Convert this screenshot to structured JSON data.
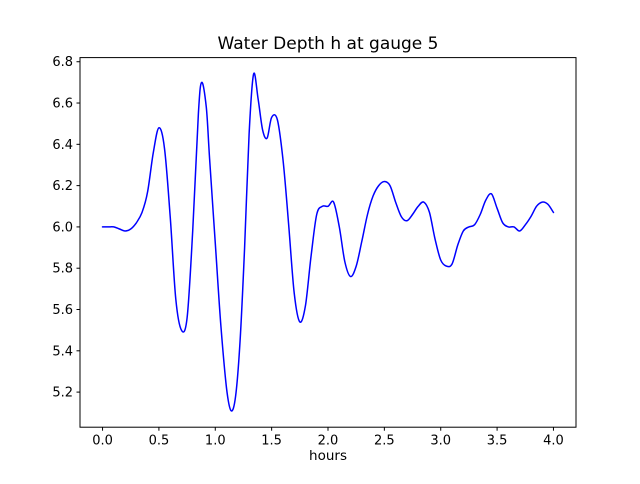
{
  "chart_data": {
    "type": "line",
    "title": "Water Depth h at gauge 5",
    "xlabel": "hours",
    "ylabel": "",
    "xlim": [
      -0.2,
      4.2
    ],
    "ylim": [
      5.03,
      6.82
    ],
    "xticks": [
      0.0,
      0.5,
      1.0,
      1.5,
      2.0,
      2.5,
      3.0,
      3.5,
      4.0
    ],
    "xtick_labels": [
      "0.0",
      "0.5",
      "1.0",
      "1.5",
      "2.0",
      "2.5",
      "3.0",
      "3.5",
      "4.0"
    ],
    "yticks": [
      5.2,
      5.4,
      5.6,
      5.8,
      6.0,
      6.2,
      6.4,
      6.6,
      6.8
    ],
    "ytick_labels": [
      "5.2",
      "5.4",
      "5.6",
      "5.8",
      "6.0",
      "6.2",
      "6.4",
      "6.6",
      "6.8"
    ],
    "line_color": "#0000ff",
    "axis_color": "#000000",
    "background_color": "#ffffff",
    "grid": false,
    "legend": null,
    "series": [
      {
        "name": "h",
        "x": [
          0.0,
          0.05,
          0.1,
          0.15,
          0.2,
          0.25,
          0.3,
          0.35,
          0.4,
          0.45,
          0.5,
          0.55,
          0.6,
          0.65,
          0.7,
          0.75,
          0.8,
          0.85,
          0.88,
          0.92,
          0.95,
          1.0,
          1.05,
          1.1,
          1.14,
          1.18,
          1.22,
          1.26,
          1.3,
          1.34,
          1.38,
          1.42,
          1.46,
          1.5,
          1.55,
          1.6,
          1.65,
          1.7,
          1.75,
          1.8,
          1.85,
          1.9,
          1.95,
          2.0,
          2.05,
          2.1,
          2.15,
          2.2,
          2.25,
          2.3,
          2.35,
          2.4,
          2.45,
          2.5,
          2.55,
          2.6,
          2.65,
          2.7,
          2.75,
          2.8,
          2.85,
          2.9,
          2.95,
          3.0,
          3.05,
          3.1,
          3.15,
          3.2,
          3.25,
          3.3,
          3.35,
          3.4,
          3.45,
          3.5,
          3.55,
          3.6,
          3.65,
          3.7,
          3.75,
          3.8,
          3.85,
          3.9,
          3.95,
          4.0
        ],
        "y": [
          6.0,
          6.0,
          6.0,
          5.99,
          5.98,
          5.99,
          6.02,
          6.07,
          6.17,
          6.36,
          6.48,
          6.38,
          6.05,
          5.65,
          5.5,
          5.56,
          5.98,
          6.55,
          6.7,
          6.58,
          6.33,
          5.92,
          5.52,
          5.22,
          5.11,
          5.18,
          5.45,
          5.9,
          6.45,
          6.74,
          6.62,
          6.47,
          6.43,
          6.53,
          6.52,
          6.33,
          6.02,
          5.68,
          5.54,
          5.62,
          5.86,
          6.06,
          6.1,
          6.1,
          6.12,
          6.0,
          5.83,
          5.76,
          5.81,
          5.93,
          6.06,
          6.15,
          6.2,
          6.22,
          6.2,
          6.12,
          6.05,
          6.03,
          6.06,
          6.1,
          6.12,
          6.07,
          5.94,
          5.84,
          5.81,
          5.82,
          5.91,
          5.98,
          6.0,
          6.01,
          6.06,
          6.13,
          6.16,
          6.09,
          6.02,
          6.0,
          6.0,
          5.98,
          6.01,
          6.05,
          6.1,
          6.12,
          6.11,
          6.07
        ]
      }
    ]
  }
}
